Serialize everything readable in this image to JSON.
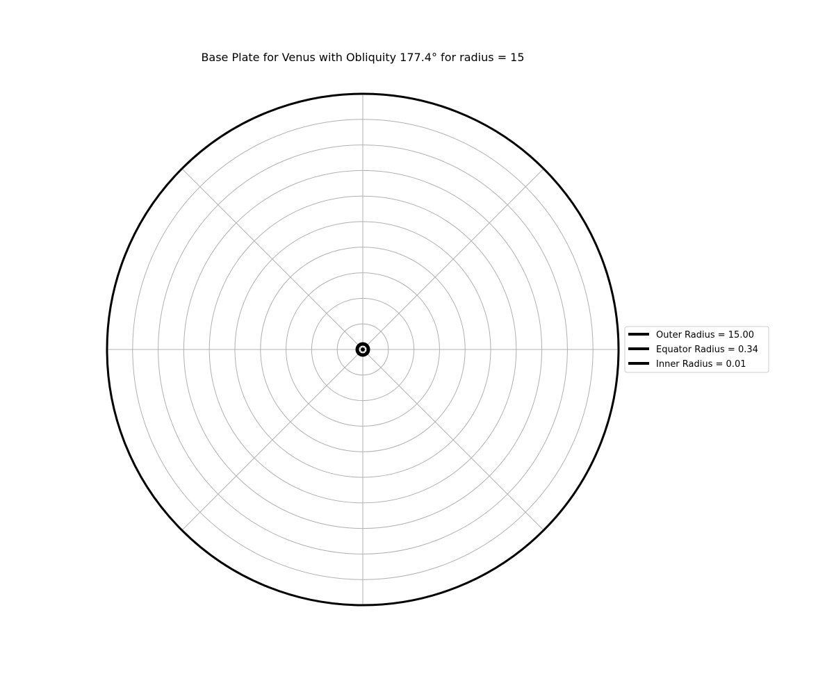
{
  "chart_data": {
    "type": "polar",
    "title": "Base Plate for Venus with Obliquity 177.4° for radius = 15",
    "rlim": [
      0,
      15
    ],
    "grid": true,
    "grid_rings": [
      1.5,
      3,
      4.5,
      6,
      7.5,
      9,
      10.5,
      12,
      13.5
    ],
    "grid_angles_deg": [
      0,
      45,
      90,
      135,
      180,
      225,
      270,
      315
    ],
    "legend_position": "center-right, outside plot",
    "series": [
      {
        "name": "Outer Radius = 15.00",
        "radius": 15.0,
        "color": "#000000"
      },
      {
        "name": "Equator Radius = 0.34",
        "radius": 0.34,
        "color": "#000000"
      },
      {
        "name": "Inner Radius = 0.01",
        "radius": 0.01,
        "color": "#000000"
      }
    ]
  }
}
